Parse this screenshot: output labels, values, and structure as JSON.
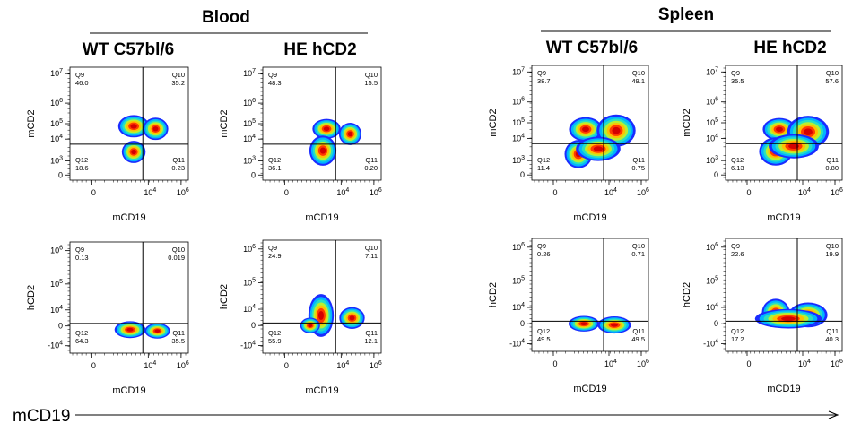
{
  "groups": [
    {
      "title": "Blood",
      "columns": [
        0,
        1
      ]
    },
    {
      "title": "Spleen",
      "columns": [
        2,
        3
      ]
    }
  ],
  "column_titles": [
    "WT C57bl/6",
    "HE hCD2",
    "WT C57bl/6",
    "HE hCD2"
  ],
  "bottom_axis_label": "mCD19",
  "colors": {
    "density_low": "#1a2cff",
    "density_mid1": "#00b4ff",
    "density_mid2": "#29e0c0",
    "density_mid3": "#b8f030",
    "density_high1": "#ffc000",
    "density_high2": "#ff3a00",
    "density_peak": "#d40000",
    "gate_line": "#000000"
  },
  "chart_data": [
    {
      "type": "scatter",
      "tissue": "Blood",
      "strain": "WT C57bl/6",
      "xlabel": "mCD19",
      "ylabel": "mCD2",
      "xticks": [
        "0",
        "10^4",
        "10^6"
      ],
      "yticks": [
        "0",
        "10^3",
        "10^4",
        "10^5",
        "10^6",
        "10^7"
      ],
      "quadrants": {
        "Q9": "46.0",
        "Q10": "35.2",
        "Q11": "0.23",
        "Q12": "18.6"
      },
      "populations": [
        {
          "x": 3.5,
          "y": 4.9,
          "sx": 0.55,
          "sy": 0.28
        },
        {
          "x": 4.7,
          "y": 4.8,
          "sx": 0.45,
          "sy": 0.28
        },
        {
          "x": 3.5,
          "y": 3.9,
          "sx": 0.42,
          "sy": 0.28
        }
      ]
    },
    {
      "type": "scatter",
      "tissue": "Blood",
      "strain": "HE hCD2",
      "xlabel": "mCD19",
      "ylabel": "mCD2",
      "xticks": [
        "0",
        "10^4",
        "10^6"
      ],
      "yticks": [
        "0",
        "10^3",
        "10^4",
        "10^5",
        "10^6",
        "10^7"
      ],
      "quadrants": {
        "Q9": "48.3",
        "Q10": "15.5",
        "Q11": "0.20",
        "Q12": "36.1"
      },
      "populations": [
        {
          "x": 3.5,
          "y": 4.8,
          "sx": 0.5,
          "sy": 0.25
        },
        {
          "x": 4.8,
          "y": 4.6,
          "sx": 0.4,
          "sy": 0.28
        },
        {
          "x": 3.3,
          "y": 3.95,
          "sx": 0.48,
          "sy": 0.38
        }
      ]
    },
    {
      "type": "scatter",
      "tissue": "Spleen",
      "strain": "WT C57bl/6",
      "xlabel": "mCD19",
      "ylabel": "mCD2",
      "xticks": [
        "0",
        "10^4",
        "10^6"
      ],
      "yticks": [
        "0",
        "10^3",
        "10^4",
        "10^5",
        "10^6",
        "10^7"
      ],
      "quadrants": {
        "Q9": "38.7",
        "Q10": "49.1",
        "Q11": "0.75",
        "Q12": "11.4"
      },
      "populations": [
        {
          "x": 3.0,
          "y": 4.75,
          "sx": 0.6,
          "sy": 0.3
        },
        {
          "x": 4.7,
          "y": 4.7,
          "sx": 0.7,
          "sy": 0.4
        },
        {
          "x": 2.6,
          "y": 3.8,
          "sx": 0.5,
          "sy": 0.35
        },
        {
          "x": 3.7,
          "y": 4.0,
          "sx": 0.8,
          "sy": 0.3
        }
      ]
    },
    {
      "type": "scatter",
      "tissue": "Spleen",
      "strain": "HE hCD2",
      "xlabel": "mCD19",
      "ylabel": "mCD2",
      "xticks": [
        "0",
        "10^4",
        "10^6"
      ],
      "yticks": [
        "0",
        "10^3",
        "10^4",
        "10^5",
        "10^6",
        "10^7"
      ],
      "quadrants": {
        "Q9": "35.5",
        "Q10": "57.6",
        "Q11": "0.80",
        "Q12": "6.13"
      },
      "populations": [
        {
          "x": 3.0,
          "y": 4.75,
          "sx": 0.6,
          "sy": 0.28
        },
        {
          "x": 4.6,
          "y": 4.65,
          "sx": 0.75,
          "sy": 0.4
        },
        {
          "x": 2.8,
          "y": 3.9,
          "sx": 0.6,
          "sy": 0.35
        },
        {
          "x": 3.8,
          "y": 4.1,
          "sx": 0.9,
          "sy": 0.3
        }
      ]
    },
    {
      "type": "scatter",
      "tissue": "Blood",
      "strain": "WT C57bl/6",
      "xlabel": "mCD19",
      "ylabel": "hCD2",
      "xticks": [
        "0",
        "10^4",
        "10^6"
      ],
      "yticks": [
        "-10^4",
        "0",
        "10^4",
        "10^5",
        "10^6"
      ],
      "quadrants": {
        "Q9": "0.13",
        "Q10": "0.019",
        "Q11": "35.5",
        "Q12": "64.3"
      },
      "populations": [
        {
          "x": 3.3,
          "y": 2.75,
          "sx": 0.55,
          "sy": 0.22
        },
        {
          "x": 4.8,
          "y": 2.7,
          "sx": 0.45,
          "sy": 0.2
        }
      ]
    },
    {
      "type": "scatter",
      "tissue": "Blood",
      "strain": "HE hCD2",
      "xlabel": "mCD19",
      "ylabel": "hCD2",
      "xticks": [
        "0",
        "10^4",
        "10^6"
      ],
      "yticks": [
        "-10^4",
        "0",
        "10^4",
        "10^5",
        "10^6"
      ],
      "quadrants": {
        "Q9": "24.9",
        "Q10": "7.11",
        "Q11": "12.1",
        "Q12": "55.9"
      },
      "populations": [
        {
          "x": 3.2,
          "y": 3.3,
          "sx": 0.45,
          "sy": 0.55
        },
        {
          "x": 4.9,
          "y": 3.2,
          "sx": 0.45,
          "sy": 0.28
        },
        {
          "x": 2.6,
          "y": 2.9,
          "sx": 0.35,
          "sy": 0.2
        }
      ]
    },
    {
      "type": "scatter",
      "tissue": "Spleen",
      "strain": "WT C57bl/6",
      "xlabel": "mCD19",
      "ylabel": "hCD2",
      "xticks": [
        "0",
        "10^4",
        "10^6"
      ],
      "yticks": [
        "-10^4",
        "0",
        "10^4",
        "10^5",
        "10^6"
      ],
      "quadrants": {
        "Q9": "0.26",
        "Q10": "0.71",
        "Q11": "49.5",
        "Q12": "49.5"
      },
      "populations": [
        {
          "x": 2.9,
          "y": 2.9,
          "sx": 0.55,
          "sy": 0.2
        },
        {
          "x": 4.6,
          "y": 2.85,
          "sx": 0.6,
          "sy": 0.22
        }
      ]
    },
    {
      "type": "scatter",
      "tissue": "Spleen",
      "strain": "HE hCD2",
      "xlabel": "mCD19",
      "ylabel": "hCD2",
      "xticks": [
        "0",
        "10^4",
        "10^6"
      ],
      "yticks": [
        "-10^4",
        "0",
        "10^4",
        "10^5",
        "10^6"
      ],
      "quadrants": {
        "Q9": "22.6",
        "Q10": "19.9",
        "Q11": "40.3",
        "Q12": "17.2"
      },
      "populations": [
        {
          "x": 2.8,
          "y": 3.35,
          "sx": 0.5,
          "sy": 0.35
        },
        {
          "x": 4.6,
          "y": 3.25,
          "sx": 0.7,
          "sy": 0.32
        },
        {
          "x": 3.5,
          "y": 3.1,
          "sx": 1.2,
          "sy": 0.25
        }
      ]
    }
  ]
}
